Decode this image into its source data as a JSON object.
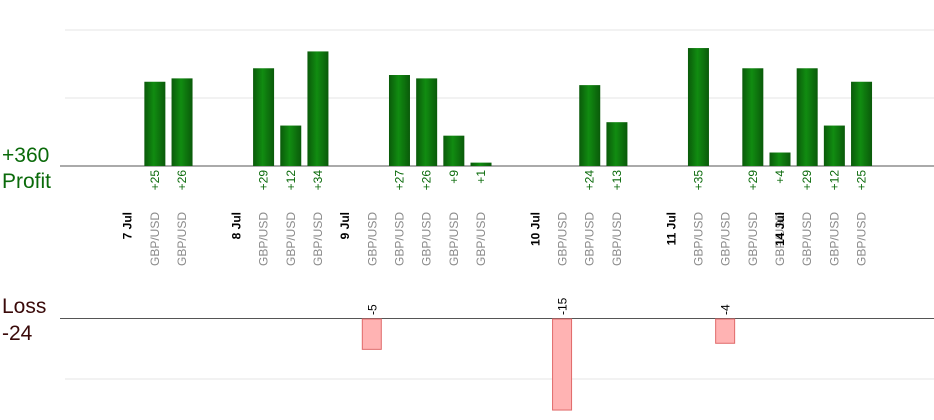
{
  "summary": {
    "profit_total": "+360",
    "profit_label": "Profit",
    "loss_label": "Loss",
    "loss_total": "-24"
  },
  "colors": {
    "profit_dark": "#0a5a0a",
    "profit_light": "#0f8a0f",
    "profit_text": "#0a6a0a",
    "loss_fill": "#ffb3b3",
    "loss_stroke": "#e06a6a",
    "loss_text": "#000000",
    "axis": "#555555",
    "grid": "#e6e6e6",
    "loss_label_text": "#3a0a0a"
  },
  "chart_data": {
    "type": "bar",
    "title": "",
    "xlabel": "",
    "ylabel": "",
    "profit_ylim": [
      0,
      24
    ],
    "loss_ylim": [
      0,
      15
    ],
    "dates": [
      {
        "label": "7 Jul",
        "slot": 1
      },
      {
        "label": "8 Jul",
        "slot": 5
      },
      {
        "label": "9 Jul",
        "slot": 9
      },
      {
        "label": "10 Jul",
        "slot": 16
      },
      {
        "label": "11 Jul",
        "slot": 21
      },
      {
        "label": "14 Jul",
        "slot": 25
      }
    ],
    "trades": [
      {
        "slot": 2,
        "pair": "GBP/USD",
        "value": 25,
        "label": "+25"
      },
      {
        "slot": 3,
        "pair": "GBP/USD",
        "value": 26,
        "label": "+26"
      },
      {
        "slot": 6,
        "pair": "GBP/USD",
        "value": 29,
        "label": "+29"
      },
      {
        "slot": 7,
        "pair": "GBP/USD",
        "value": 12,
        "label": "+12"
      },
      {
        "slot": 8,
        "pair": "GBP/USD",
        "value": 34,
        "label": "+34"
      },
      {
        "slot": 10,
        "pair": "GBP/USD",
        "value": -5,
        "label": "-5"
      },
      {
        "slot": 11,
        "pair": "GBP/USD",
        "value": 27,
        "label": "+27"
      },
      {
        "slot": 12,
        "pair": "GBP/USD",
        "value": 26,
        "label": "+26"
      },
      {
        "slot": 13,
        "pair": "GBP/USD",
        "value": 9,
        "label": "+9"
      },
      {
        "slot": 14,
        "pair": "GBP/USD",
        "value": 1,
        "label": "+1"
      },
      {
        "slot": 17,
        "pair": "GBP/USD",
        "value": -15,
        "label": "-15"
      },
      {
        "slot": 18,
        "pair": "GBP/USD",
        "value": 24,
        "label": "+24"
      },
      {
        "slot": 19,
        "pair": "GBP/USD",
        "value": 13,
        "label": "+13"
      },
      {
        "slot": 22,
        "pair": "GBP/USD",
        "value": 35,
        "label": "+35"
      },
      {
        "slot": 23,
        "pair": "GBP/USD",
        "value": -4,
        "label": "-4"
      },
      {
        "slot": 24,
        "pair": "GBP/USD",
        "value": 29,
        "label": "+29"
      },
      {
        "slot": 25,
        "pair": "GBP/USD",
        "value": 4,
        "label": "+4"
      },
      {
        "slot": 26,
        "pair": "GBP/USD",
        "value": 29,
        "label": "+29"
      },
      {
        "slot": 27,
        "pair": "GBP/USD",
        "value": 12,
        "label": "+12"
      },
      {
        "slot": 28,
        "pair": "GBP/USD",
        "value": 25,
        "label": "+25"
      }
    ]
  }
}
